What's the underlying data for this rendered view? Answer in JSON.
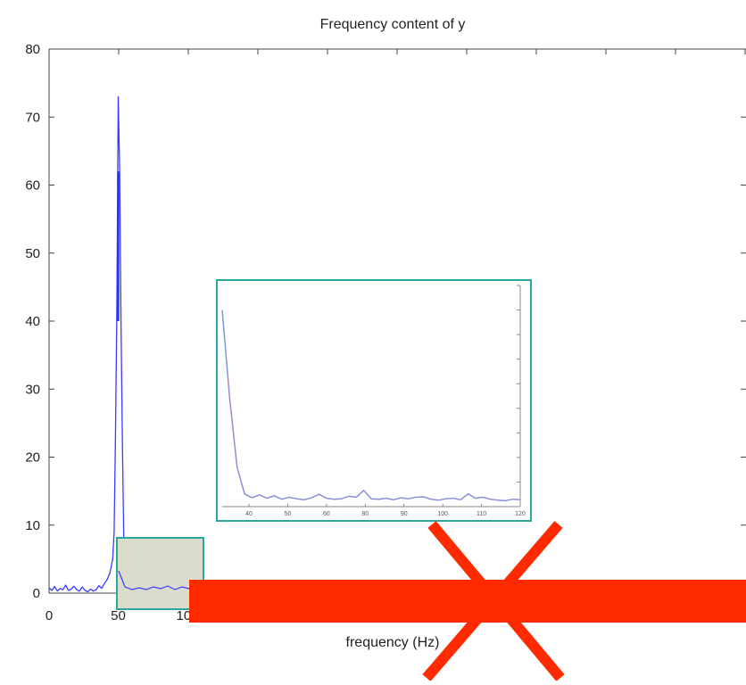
{
  "chart_data": {
    "type": "line",
    "title": "Frequency content of y",
    "xlabel": "frequency (Hz)",
    "ylabel": "",
    "xlim": [
      0,
      500
    ],
    "ylim": [
      0,
      80
    ],
    "y_ticks": [
      0,
      10,
      20,
      30,
      40,
      50,
      60,
      70,
      80
    ],
    "x_ticks": [
      0,
      50,
      100
    ],
    "grid": false,
    "series": [
      {
        "color": "#3a3aff",
        "x": [
          0,
          2,
          4,
          6,
          8,
          10,
          12,
          14,
          16,
          18,
          20,
          22,
          24,
          26,
          28,
          30,
          32,
          34,
          36,
          38,
          40,
          42,
          44,
          46,
          47,
          48,
          49,
          50,
          51,
          52,
          53,
          54,
          55,
          56,
          58,
          60,
          62,
          64,
          66,
          68,
          70,
          72,
          74,
          76,
          78,
          80,
          82,
          84,
          86,
          88,
          90,
          92,
          94,
          96,
          98,
          100,
          102,
          104,
          106,
          108,
          110,
          112,
          114,
          116,
          118,
          120
        ],
        "values": [
          0.8,
          0.4,
          1.0,
          0.3,
          0.7,
          0.5,
          1.2,
          0.4,
          0.6,
          1.0,
          0.5,
          0.3,
          0.9,
          0.4,
          0.2,
          0.6,
          0.3,
          0.5,
          1.1,
          0.7,
          1.4,
          2.0,
          3.0,
          5.0,
          9.0,
          23.0,
          41.0,
          73.0,
          62.0,
          40.0,
          22.0,
          8.0,
          3.5,
          1.5,
          0.8,
          0.6,
          0.9,
          0.5,
          0.7,
          0.4,
          0.6,
          0.9,
          0.5,
          0.3,
          0.5,
          0.6,
          0.4,
          1.0,
          0.7,
          0.5,
          0.4,
          0.5,
          1.1,
          0.6,
          0.5,
          0.6,
          0.4,
          0.5,
          0.7,
          0.8,
          0.4,
          0.3,
          0.5,
          0.7,
          0.9,
          0.4
        ]
      }
    ],
    "inset": {
      "x_ticks": [
        40,
        50,
        60,
        80,
        90,
        100,
        110,
        120
      ],
      "x": [
        40,
        42,
        44,
        46,
        48,
        50,
        52,
        54,
        56,
        58,
        60,
        62,
        64,
        66,
        68,
        70,
        72,
        74,
        76,
        78,
        80,
        82,
        84,
        86,
        88,
        90,
        92,
        94,
        96,
        98,
        100,
        102,
        104,
        106,
        108,
        110,
        112,
        114,
        116,
        118,
        120
      ],
      "values": [
        40,
        22,
        8,
        2.6,
        1.8,
        2.4,
        1.7,
        2.2,
        1.5,
        1.9,
        1.6,
        1.4,
        1.8,
        2.5,
        1.7,
        1.5,
        1.6,
        2.1,
        1.9,
        3.3,
        1.6,
        1.5,
        1.7,
        1.4,
        1.8,
        1.6,
        1.9,
        2.0,
        1.5,
        1.3,
        1.6,
        1.7,
        1.4,
        2.6,
        1.7,
        1.9,
        1.5,
        1.3,
        1.2,
        1.5,
        1.4
      ]
    },
    "annotation": "red cross over region"
  },
  "colors": {
    "series": "#3a3aff",
    "inset_series": "#8a90d8",
    "highlight_border": "#2aa7a0",
    "highlight_fill": "#dcdccc",
    "red_mark": "#ff2a00",
    "axis": "#444444"
  }
}
